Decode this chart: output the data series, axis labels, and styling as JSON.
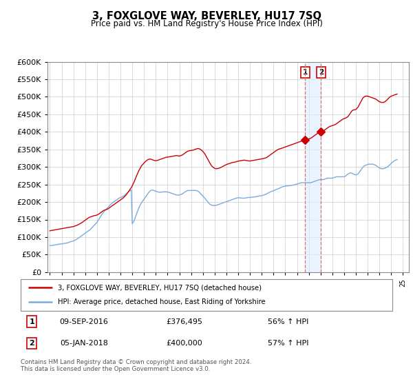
{
  "title": "3, FOXGLOVE WAY, BEVERLEY, HU17 7SQ",
  "subtitle": "Price paid vs. HM Land Registry's House Price Index (HPI)",
  "ylim": [
    0,
    600000
  ],
  "yticks": [
    0,
    50000,
    100000,
    150000,
    200000,
    250000,
    300000,
    350000,
    400000,
    450000,
    500000,
    550000,
    600000
  ],
  "xlim_start": 1994.8,
  "xlim_end": 2025.5,
  "sale1_x": 2016.69,
  "sale1_y": 376495,
  "sale2_x": 2018.03,
  "sale2_y": 400000,
  "sale1_label": "1",
  "sale2_label": "2",
  "sale1_date": "09-SEP-2016",
  "sale1_price": "£376,495",
  "sale1_hpi": "56% ↑ HPI",
  "sale2_date": "05-JAN-2018",
  "sale2_price": "£400,000",
  "sale2_hpi": "57% ↑ HPI",
  "red_line_color": "#cc0000",
  "blue_line_color": "#7aabdc",
  "dashed_line_color": "#e07070",
  "shade_color": "#ddeeff",
  "legend_label1": "3, FOXGLOVE WAY, BEVERLEY, HU17 7SQ (detached house)",
  "legend_label2": "HPI: Average price, detached house, East Riding of Yorkshire",
  "footer": "Contains HM Land Registry data © Crown copyright and database right 2024.\nThis data is licensed under the Open Government Licence v3.0.",
  "hpi_data_x": [
    1995.0,
    1995.08,
    1995.17,
    1995.25,
    1995.33,
    1995.42,
    1995.5,
    1995.58,
    1995.67,
    1995.75,
    1995.83,
    1995.92,
    1996.0,
    1996.08,
    1996.17,
    1996.25,
    1996.33,
    1996.42,
    1996.5,
    1996.58,
    1996.67,
    1996.75,
    1996.83,
    1996.92,
    1997.0,
    1997.08,
    1997.17,
    1997.25,
    1997.33,
    1997.42,
    1997.5,
    1997.58,
    1997.67,
    1997.75,
    1997.83,
    1997.92,
    1998.0,
    1998.08,
    1998.17,
    1998.25,
    1998.33,
    1998.42,
    1998.5,
    1998.58,
    1998.67,
    1998.75,
    1998.83,
    1998.92,
    1999.0,
    1999.08,
    1999.17,
    1999.25,
    1999.33,
    1999.42,
    1999.5,
    1999.58,
    1999.67,
    1999.75,
    1999.83,
    1999.92,
    2000.0,
    2000.08,
    2000.17,
    2000.25,
    2000.33,
    2000.42,
    2000.5,
    2000.58,
    2000.67,
    2000.75,
    2000.83,
    2000.92,
    2001.0,
    2001.08,
    2001.17,
    2001.25,
    2001.33,
    2001.42,
    2001.5,
    2001.58,
    2001.67,
    2001.75,
    2001.83,
    2001.92,
    2002.0,
    2002.08,
    2002.17,
    2002.25,
    2002.33,
    2002.42,
    2002.5,
    2002.58,
    2002.67,
    2002.75,
    2002.83,
    2002.92,
    2003.0,
    2003.08,
    2003.17,
    2003.25,
    2003.33,
    2003.42,
    2003.5,
    2003.58,
    2003.67,
    2003.75,
    2003.83,
    2003.92,
    2004.0,
    2004.08,
    2004.17,
    2004.25,
    2004.33,
    2004.42,
    2004.5,
    2004.58,
    2004.67,
    2004.75,
    2004.83,
    2004.92,
    2005.0,
    2005.08,
    2005.17,
    2005.25,
    2005.33,
    2005.42,
    2005.5,
    2005.58,
    2005.67,
    2005.75,
    2005.83,
    2005.92,
    2006.0,
    2006.08,
    2006.17,
    2006.25,
    2006.33,
    2006.42,
    2006.5,
    2006.58,
    2006.67,
    2006.75,
    2006.83,
    2006.92,
    2007.0,
    2007.08,
    2007.17,
    2007.25,
    2007.33,
    2007.42,
    2007.5,
    2007.58,
    2007.67,
    2007.75,
    2007.83,
    2007.92,
    2008.0,
    2008.08,
    2008.17,
    2008.25,
    2008.33,
    2008.42,
    2008.5,
    2008.58,
    2008.67,
    2008.75,
    2008.83,
    2008.92,
    2009.0,
    2009.08,
    2009.17,
    2009.25,
    2009.33,
    2009.42,
    2009.5,
    2009.58,
    2009.67,
    2009.75,
    2009.83,
    2009.92,
    2010.0,
    2010.08,
    2010.17,
    2010.25,
    2010.33,
    2010.42,
    2010.5,
    2010.58,
    2010.67,
    2010.75,
    2010.83,
    2010.92,
    2011.0,
    2011.08,
    2011.17,
    2011.25,
    2011.33,
    2011.42,
    2011.5,
    2011.58,
    2011.67,
    2011.75,
    2011.83,
    2011.92,
    2012.0,
    2012.08,
    2012.17,
    2012.25,
    2012.33,
    2012.42,
    2012.5,
    2012.58,
    2012.67,
    2012.75,
    2012.83,
    2012.92,
    2013.0,
    2013.08,
    2013.17,
    2013.25,
    2013.33,
    2013.42,
    2013.5,
    2013.58,
    2013.67,
    2013.75,
    2013.83,
    2013.92,
    2014.0,
    2014.08,
    2014.17,
    2014.25,
    2014.33,
    2014.42,
    2014.5,
    2014.58,
    2014.67,
    2014.75,
    2014.83,
    2014.92,
    2015.0,
    2015.08,
    2015.17,
    2015.25,
    2015.33,
    2015.42,
    2015.5,
    2015.58,
    2015.67,
    2015.75,
    2015.83,
    2015.92,
    2016.0,
    2016.08,
    2016.17,
    2016.25,
    2016.33,
    2016.42,
    2016.5,
    2016.58,
    2016.67,
    2016.75,
    2016.83,
    2016.92,
    2017.0,
    2017.08,
    2017.17,
    2017.25,
    2017.33,
    2017.42,
    2017.5,
    2017.58,
    2017.67,
    2017.75,
    2017.83,
    2017.92,
    2018.0,
    2018.08,
    2018.17,
    2018.25,
    2018.33,
    2018.42,
    2018.5,
    2018.58,
    2018.67,
    2018.75,
    2018.83,
    2018.92,
    2019.0,
    2019.08,
    2019.17,
    2019.25,
    2019.33,
    2019.42,
    2019.5,
    2019.58,
    2019.67,
    2019.75,
    2019.83,
    2019.92,
    2020.0,
    2020.08,
    2020.17,
    2020.25,
    2020.33,
    2020.42,
    2020.5,
    2020.58,
    2020.67,
    2020.75,
    2020.83,
    2020.92,
    2021.0,
    2021.08,
    2021.17,
    2021.25,
    2021.33,
    2021.42,
    2021.5,
    2021.58,
    2021.67,
    2021.75,
    2021.83,
    2021.92,
    2022.0,
    2022.08,
    2022.17,
    2022.25,
    2022.33,
    2022.42,
    2022.5,
    2022.58,
    2022.67,
    2022.75,
    2022.83,
    2022.92,
    2023.0,
    2023.08,
    2023.17,
    2023.25,
    2023.33,
    2023.42,
    2023.5,
    2023.58,
    2023.67,
    2023.75,
    2023.83,
    2023.92,
    2024.0,
    2024.08,
    2024.17,
    2024.25,
    2024.33,
    2024.42,
    2024.5
  ],
  "hpi_data_y": [
    76000,
    76000,
    76000,
    76500,
    77000,
    77500,
    78000,
    78500,
    79000,
    79500,
    79800,
    80000,
    80500,
    81000,
    81500,
    82000,
    82500,
    83000,
    83500,
    84500,
    85500,
    86500,
    87500,
    88000,
    89000,
    90000,
    91500,
    93000,
    95000,
    97000,
    99000,
    101000,
    103000,
    105000,
    107000,
    109000,
    111000,
    113000,
    115000,
    117000,
    119000,
    121000,
    124000,
    127000,
    130000,
    133000,
    136000,
    139000,
    142000,
    146000,
    151000,
    156000,
    160000,
    164000,
    168000,
    172000,
    175000,
    178000,
    181000,
    184000,
    187000,
    190000,
    193000,
    196000,
    198000,
    200000,
    202000,
    204000,
    206000,
    208000,
    210000,
    212000,
    213000,
    214000,
    215000,
    217000,
    219000,
    221000,
    224000,
    226000,
    229000,
    231000,
    233000,
    235000,
    138000,
    142000,
    148000,
    155000,
    163000,
    171000,
    178000,
    185000,
    191000,
    196000,
    200000,
    204000,
    208000,
    212000,
    216000,
    220000,
    224000,
    228000,
    231000,
    233000,
    234000,
    234000,
    233000,
    232000,
    231000,
    230000,
    229000,
    228000,
    228000,
    228000,
    228000,
    229000,
    229000,
    229000,
    229000,
    229000,
    228000,
    228000,
    227000,
    226000,
    225000,
    224000,
    223000,
    222000,
    221000,
    220000,
    220000,
    220000,
    220000,
    221000,
    222000,
    223000,
    225000,
    227000,
    229000,
    231000,
    232000,
    233000,
    233000,
    233000,
    233000,
    233000,
    233000,
    233000,
    233000,
    233000,
    232000,
    231000,
    229000,
    226000,
    223000,
    220000,
    217000,
    214000,
    211000,
    207000,
    204000,
    200000,
    197000,
    194000,
    192000,
    191000,
    190000,
    190000,
    190000,
    190000,
    191000,
    192000,
    193000,
    194000,
    195000,
    196000,
    197000,
    198000,
    199000,
    200000,
    201000,
    202000,
    203000,
    204000,
    205000,
    206000,
    207000,
    208000,
    209000,
    210000,
    211000,
    212000,
    212000,
    212000,
    212000,
    211000,
    211000,
    211000,
    211000,
    211000,
    212000,
    212000,
    213000,
    213000,
    213000,
    213000,
    214000,
    214000,
    214000,
    215000,
    215000,
    216000,
    216000,
    217000,
    217000,
    218000,
    218000,
    219000,
    220000,
    221000,
    222000,
    223000,
    225000,
    226000,
    228000,
    229000,
    230000,
    231000,
    232000,
    233000,
    235000,
    236000,
    237000,
    238000,
    239000,
    241000,
    242000,
    243000,
    244000,
    245000,
    245000,
    246000,
    246000,
    246000,
    247000,
    247000,
    247000,
    248000,
    248000,
    249000,
    250000,
    251000,
    251000,
    252000,
    253000,
    254000,
    255000,
    255000,
    255000,
    255000,
    255000,
    255000,
    255000,
    255000,
    255000,
    255000,
    255000,
    256000,
    257000,
    258000,
    259000,
    260000,
    261000,
    262000,
    263000,
    264000,
    264000,
    264000,
    264000,
    264000,
    265000,
    266000,
    267000,
    268000,
    268000,
    268000,
    268000,
    268000,
    268000,
    269000,
    270000,
    271000,
    272000,
    272000,
    272000,
    272000,
    272000,
    272000,
    272000,
    272000,
    272000,
    273000,
    275000,
    278000,
    280000,
    282000,
    283000,
    283000,
    282000,
    281000,
    279000,
    278000,
    277000,
    278000,
    280000,
    283000,
    287000,
    291000,
    295000,
    299000,
    302000,
    304000,
    305000,
    306000,
    307000,
    308000,
    308000,
    308000,
    308000,
    308000,
    307000,
    306000,
    305000,
    303000,
    301000,
    299000,
    297000,
    296000,
    295000,
    295000,
    295000,
    296000,
    297000,
    298000,
    300000,
    302000,
    305000,
    307000,
    310000,
    313000,
    315000,
    317000,
    319000,
    320000,
    321000
  ],
  "red_data_x": [
    1995.0,
    1995.08,
    1995.17,
    1995.25,
    1995.33,
    1995.42,
    1995.5,
    1995.58,
    1995.67,
    1995.75,
    1995.83,
    1995.92,
    1996.0,
    1996.08,
    1996.17,
    1996.25,
    1996.33,
    1996.42,
    1996.5,
    1996.58,
    1996.67,
    1996.75,
    1996.83,
    1996.92,
    1997.0,
    1997.08,
    1997.17,
    1997.25,
    1997.33,
    1997.42,
    1997.5,
    1997.58,
    1997.67,
    1997.75,
    1997.83,
    1997.92,
    1998.0,
    1998.08,
    1998.17,
    1998.25,
    1998.33,
    1998.42,
    1998.5,
    1998.58,
    1998.67,
    1998.75,
    1998.83,
    1998.92,
    1999.0,
    1999.08,
    1999.17,
    1999.25,
    1999.33,
    1999.42,
    1999.5,
    1999.58,
    1999.67,
    1999.75,
    1999.83,
    1999.92,
    2000.0,
    2000.08,
    2000.17,
    2000.25,
    2000.33,
    2000.42,
    2000.5,
    2000.58,
    2000.67,
    2000.75,
    2000.83,
    2000.92,
    2001.0,
    2001.08,
    2001.17,
    2001.25,
    2001.33,
    2001.42,
    2001.5,
    2001.58,
    2001.67,
    2001.75,
    2001.83,
    2001.92,
    2002.0,
    2002.08,
    2002.17,
    2002.25,
    2002.33,
    2002.42,
    2002.5,
    2002.58,
    2002.67,
    2002.75,
    2002.83,
    2002.92,
    2003.0,
    2003.08,
    2003.17,
    2003.25,
    2003.33,
    2003.42,
    2003.5,
    2003.58,
    2003.67,
    2003.75,
    2003.83,
    2003.92,
    2004.0,
    2004.08,
    2004.17,
    2004.25,
    2004.33,
    2004.42,
    2004.5,
    2004.58,
    2004.67,
    2004.75,
    2004.83,
    2004.92,
    2005.0,
    2005.08,
    2005.17,
    2005.25,
    2005.33,
    2005.42,
    2005.5,
    2005.58,
    2005.67,
    2005.75,
    2005.83,
    2005.92,
    2006.0,
    2006.08,
    2006.17,
    2006.25,
    2006.33,
    2006.42,
    2006.5,
    2006.58,
    2006.67,
    2006.75,
    2006.83,
    2006.92,
    2007.0,
    2007.08,
    2007.17,
    2007.25,
    2007.33,
    2007.42,
    2007.5,
    2007.58,
    2007.67,
    2007.75,
    2007.83,
    2007.92,
    2008.0,
    2008.08,
    2008.17,
    2008.25,
    2008.33,
    2008.42,
    2008.5,
    2008.58,
    2008.67,
    2008.75,
    2008.83,
    2008.92,
    2009.0,
    2009.08,
    2009.17,
    2009.25,
    2009.33,
    2009.42,
    2009.5,
    2009.58,
    2009.67,
    2009.75,
    2009.83,
    2009.92,
    2010.0,
    2010.08,
    2010.17,
    2010.25,
    2010.33,
    2010.42,
    2010.5,
    2010.58,
    2010.67,
    2010.75,
    2010.83,
    2010.92,
    2011.0,
    2011.08,
    2011.17,
    2011.25,
    2011.33,
    2011.42,
    2011.5,
    2011.58,
    2011.67,
    2011.75,
    2011.83,
    2011.92,
    2012.0,
    2012.08,
    2012.17,
    2012.25,
    2012.33,
    2012.42,
    2012.5,
    2012.58,
    2012.67,
    2012.75,
    2012.83,
    2012.92,
    2013.0,
    2013.08,
    2013.17,
    2013.25,
    2013.33,
    2013.42,
    2013.5,
    2013.58,
    2013.67,
    2013.75,
    2013.83,
    2013.92,
    2014.0,
    2014.08,
    2014.17,
    2014.25,
    2014.33,
    2014.42,
    2014.5,
    2014.58,
    2014.67,
    2014.75,
    2014.83,
    2014.92,
    2015.0,
    2015.08,
    2015.17,
    2015.25,
    2015.33,
    2015.42,
    2015.5,
    2015.58,
    2015.67,
    2015.75,
    2015.83,
    2015.92,
    2016.0,
    2016.08,
    2016.17,
    2016.25,
    2016.33,
    2016.42,
    2016.5,
    2016.58,
    2016.67,
    2016.75,
    2016.83,
    2016.92,
    2017.0,
    2017.08,
    2017.17,
    2017.25,
    2017.33,
    2017.42,
    2017.5,
    2017.58,
    2017.67,
    2017.75,
    2017.83,
    2017.92,
    2018.0,
    2018.08,
    2018.17,
    2018.25,
    2018.33,
    2018.42,
    2018.5,
    2018.58,
    2018.67,
    2018.75,
    2018.83,
    2018.92,
    2019.0,
    2019.08,
    2019.17,
    2019.25,
    2019.33,
    2019.42,
    2019.5,
    2019.58,
    2019.67,
    2019.75,
    2019.83,
    2019.92,
    2020.0,
    2020.08,
    2020.17,
    2020.25,
    2020.33,
    2020.42,
    2020.5,
    2020.58,
    2020.67,
    2020.75,
    2020.83,
    2020.92,
    2021.0,
    2021.08,
    2021.17,
    2021.25,
    2021.33,
    2021.42,
    2021.5,
    2021.58,
    2021.67,
    2021.75,
    2021.83,
    2021.92,
    2022.0,
    2022.08,
    2022.17,
    2022.25,
    2022.33,
    2022.42,
    2022.5,
    2022.58,
    2022.67,
    2022.75,
    2022.83,
    2022.92,
    2023.0,
    2023.08,
    2023.17,
    2023.25,
    2023.33,
    2023.42,
    2023.5,
    2023.58,
    2023.67,
    2023.75,
    2023.83,
    2023.92,
    2024.0,
    2024.08,
    2024.17,
    2024.25,
    2024.33,
    2024.42,
    2024.5
  ],
  "red_data_y": [
    118000,
    118500,
    119000,
    119500,
    120000,
    120500,
    121000,
    121500,
    122000,
    122500,
    123000,
    123500,
    124000,
    124500,
    125000,
    125500,
    126000,
    126500,
    127000,
    127500,
    128000,
    128500,
    129000,
    129500,
    130000,
    131000,
    132000,
    133000,
    134000,
    135500,
    137000,
    138500,
    140000,
    142000,
    144000,
    146000,
    148000,
    150000,
    152000,
    154000,
    156000,
    157000,
    158000,
    159000,
    160000,
    161000,
    161500,
    162000,
    163000,
    164000,
    166000,
    168000,
    170000,
    172000,
    174000,
    176000,
    177000,
    178000,
    179000,
    180000,
    182000,
    184000,
    186000,
    188000,
    190000,
    192000,
    194000,
    196000,
    198000,
    200000,
    202000,
    204000,
    206000,
    208000,
    210000,
    212000,
    215000,
    218000,
    221000,
    225000,
    229000,
    233000,
    237000,
    241000,
    246000,
    252000,
    258000,
    265000,
    272000,
    279000,
    285000,
    291000,
    296000,
    301000,
    305000,
    308000,
    311000,
    314000,
    317000,
    319000,
    321000,
    322000,
    322500,
    322000,
    321000,
    320000,
    319000,
    318000,
    318000,
    318500,
    319000,
    320000,
    321000,
    322000,
    323000,
    324000,
    325000,
    326000,
    327000,
    328000,
    328000,
    328500,
    329000,
    329500,
    330000,
    330500,
    331000,
    331500,
    332000,
    332500,
    332000,
    331500,
    331000,
    332000,
    333000,
    334000,
    336000,
    338000,
    340000,
    342000,
    344000,
    345500,
    346000,
    346500,
    347000,
    347500,
    348000,
    349000,
    350000,
    351000,
    352000,
    352500,
    352000,
    351000,
    349000,
    347000,
    344000,
    341000,
    337000,
    332000,
    327000,
    322000,
    317000,
    312000,
    307000,
    303000,
    300000,
    298000,
    296000,
    295000,
    295000,
    295500,
    296000,
    297000,
    298000,
    299500,
    301000,
    302500,
    304000,
    305500,
    307000,
    308000,
    309000,
    310000,
    311000,
    312000,
    312500,
    313000,
    313500,
    314000,
    315000,
    316000,
    316500,
    317000,
    317500,
    318000,
    318500,
    319000,
    319500,
    319000,
    318500,
    318000,
    317500,
    317000,
    317000,
    317500,
    318000,
    318500,
    319000,
    319500,
    320000,
    320500,
    321000,
    321500,
    322000,
    322500,
    323000,
    323500,
    324000,
    325000,
    326000,
    327000,
    329000,
    331000,
    333000,
    335000,
    337000,
    339000,
    341000,
    343000,
    345000,
    347000,
    349000,
    350000,
    351500,
    352000,
    353000,
    354000,
    355000,
    356000,
    357000,
    358000,
    359000,
    360000,
    361000,
    362000,
    363000,
    364000,
    365000,
    366000,
    367000,
    368000,
    369000,
    370000,
    371000,
    372000,
    373000,
    374000,
    375000,
    376000,
    376495,
    377000,
    378000,
    379000,
    380000,
    381000,
    382000,
    384000,
    386000,
    388000,
    390000,
    392000,
    394000,
    396000,
    398000,
    399000,
    400000,
    401000,
    402000,
    403000,
    405000,
    407000,
    409000,
    411000,
    413000,
    415000,
    416000,
    417000,
    418000,
    419000,
    420000,
    421000,
    423000,
    425000,
    427000,
    429000,
    431000,
    433000,
    435000,
    437000,
    438000,
    439000,
    440000,
    442000,
    444000,
    448000,
    452000,
    456000,
    460000,
    462000,
    463000,
    463000,
    464000,
    467000,
    470000,
    475000,
    480000,
    486000,
    491000,
    496000,
    499000,
    501000,
    502000,
    502000,
    502000,
    501000,
    500000,
    499000,
    498000,
    497000,
    496000,
    495000,
    494000,
    492000,
    490000,
    488000,
    486000,
    485000,
    484000,
    484000,
    484000,
    485000,
    487000,
    489000,
    492000,
    495000,
    498000,
    500000,
    502000,
    503000,
    504000,
    505000,
    506000,
    507000,
    508000
  ]
}
